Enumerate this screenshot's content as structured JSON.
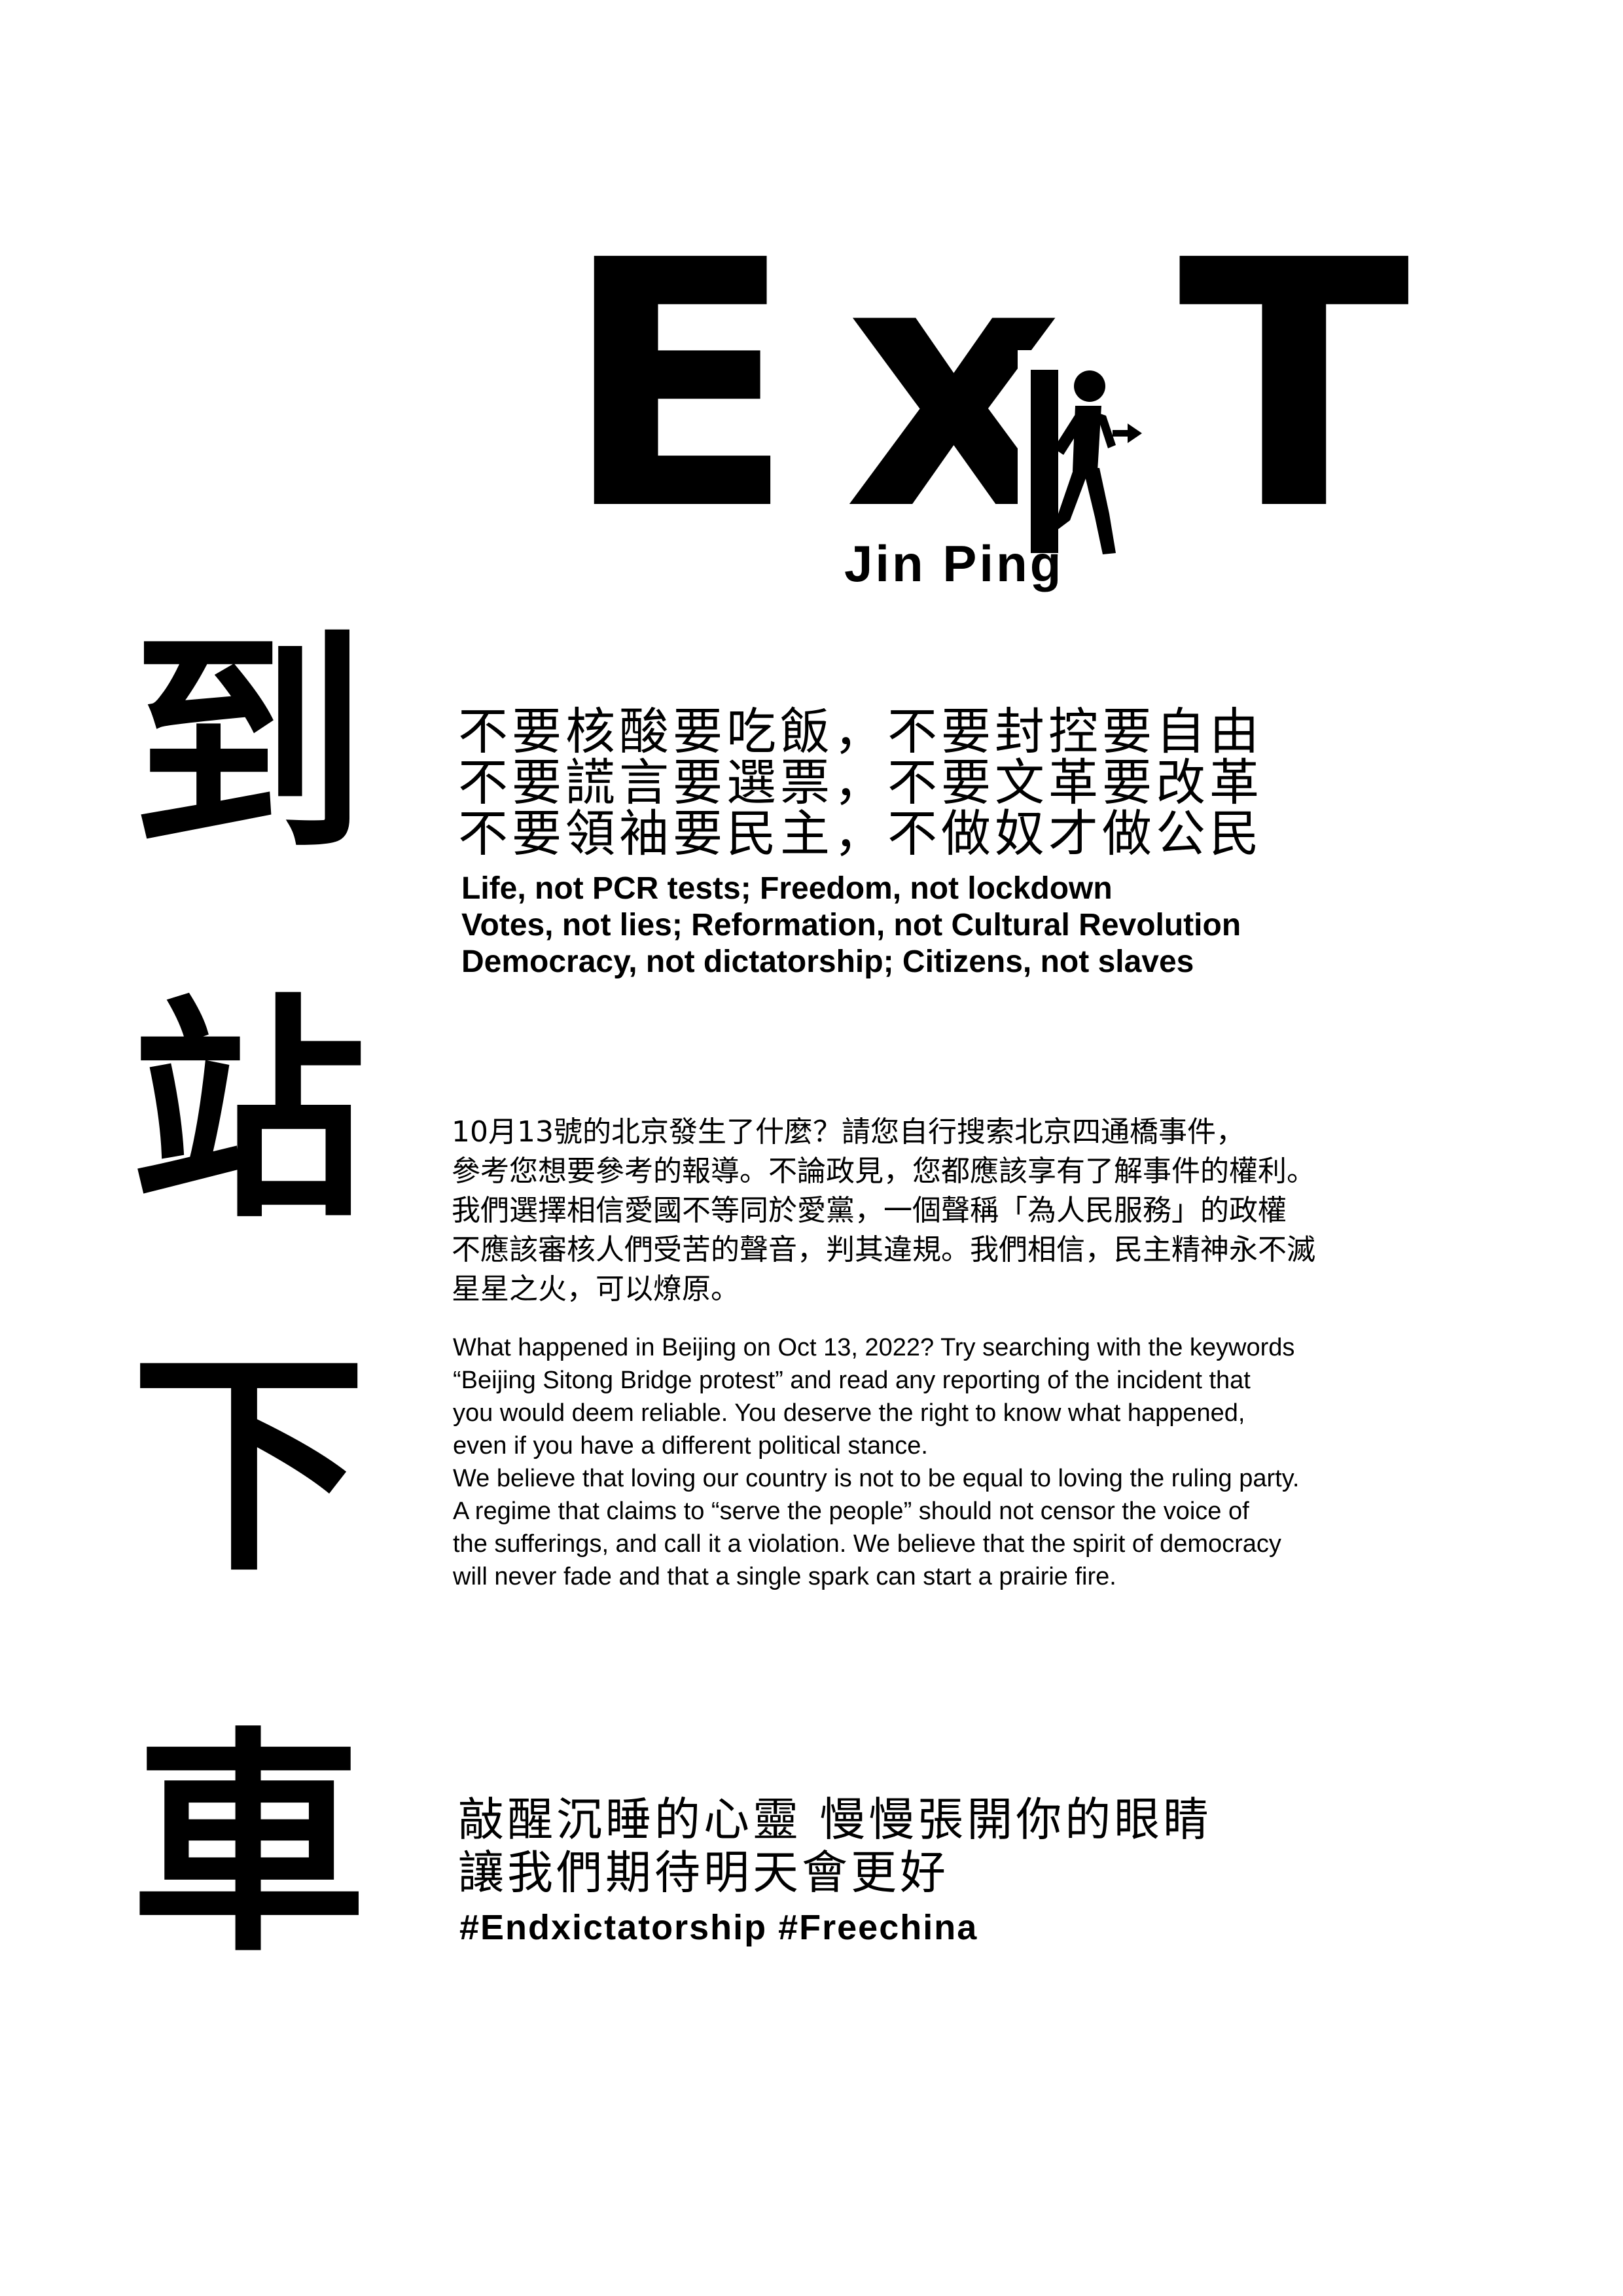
{
  "title": {
    "letter_e": "E",
    "letter_x": "x",
    "letter_t": "T",
    "subtitle": "Jin Ping",
    "sign_icon": "running-man-exit-icon"
  },
  "big_chars": [
    "到",
    "站",
    "下",
    "車"
  ],
  "slogans": {
    "cn": [
      "不要核酸要吃飯，不要封控要自由",
      "不要謊言要選票，不要文革要改革",
      "不要領袖要民主，不做奴才做公民"
    ],
    "en": [
      "Life, not PCR tests; Freedom, not lockdown",
      "Votes, not lies; Reformation, not Cultural Revolution",
      "Democracy, not dictatorship; Citizens, not slaves"
    ]
  },
  "paragraph": {
    "cn": [
      "10月13號的北京發生了什麼？請您自行搜索北京四通橋事件，",
      "參考您想要參考的報導。不論政見，您都應該享有了解事件的權利。",
      "我們選擇相信愛國不等同於愛黨，一個聲稱「為人民服務」的政權",
      "不應該審核人們受苦的聲音，判其違規。我們相信，民主精神永不滅",
      "星星之火，可以燎原。"
    ],
    "en": [
      "What happened in Beijing on Oct 13, 2022? Try searching with the keywords",
      "“Beijing Sitong Bridge protest” and read any reporting of the incident that",
      "you would deem reliable. You deserve the right to know what happened,",
      "even if you have a different political stance.",
      "We believe that loving our country is not to be equal to loving the ruling party.",
      "A regime that claims to “serve the people” should not censor the voice of",
      "the sufferings, and call it a violation. We believe that the spirit of democracy",
      "will never fade and that a single spark can start a prairie fire."
    ]
  },
  "closing": {
    "cn": [
      "敲醒沉睡的心靈 慢慢張開你的眼睛",
      "讓我們期待明天會更好"
    ],
    "hashtags": "#Endxictatorship #Freechina"
  }
}
